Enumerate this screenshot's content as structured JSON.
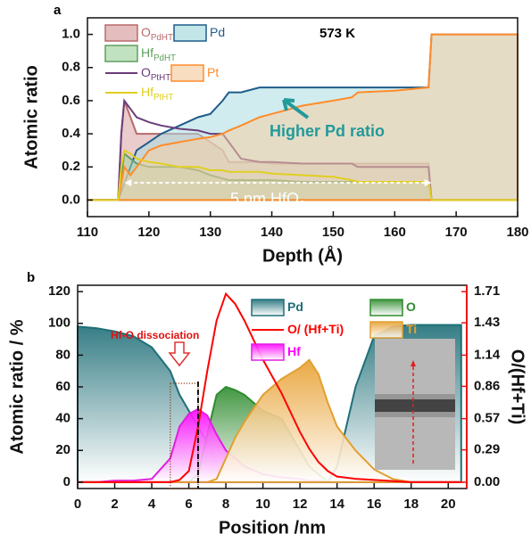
{
  "chart_data": [
    {
      "type": "area",
      "label": "a",
      "x_label": "Depth (Å)",
      "y_label": "Atomic ratio",
      "annotations": {
        "temperature": "573 K",
        "pd_ratio": "Higher Pd ratio",
        "thickness": "5 nm HfO",
        "thickness_sub": "2-x"
      },
      "x": [
        110,
        115,
        115.5,
        116,
        117,
        118,
        120,
        122,
        125,
        128,
        130,
        132,
        133,
        135,
        138,
        140,
        145,
        150,
        153,
        154,
        160,
        165.5,
        166,
        170,
        180
      ],
      "xlim": [
        110,
        180
      ],
      "xticks": [
        110,
        120,
        130,
        140,
        150,
        160,
        170,
        180
      ],
      "ylim": [
        -0.1,
        1.1
      ],
      "yticks": [
        {
          "value": 0,
          "label": "0.0"
        },
        {
          "value": 0.2,
          "label": "0.2"
        },
        {
          "value": 0.4,
          "label": "0.4"
        },
        {
          "value": 0.6,
          "label": "0.6"
        },
        {
          "value": 0.8,
          "label": "0.8"
        },
        {
          "value": 1,
          "label": "1.0"
        }
      ],
      "series": [
        {
          "name": "O",
          "name_sub": "PdHT",
          "color": "#b86a6a",
          "fill": "#d9a3a3",
          "values": [
            0,
            0,
            0.4,
            0.6,
            0.5,
            0.4,
            0.4,
            0.4,
            0.4,
            0.4,
            0.35,
            0.3,
            0.23,
            0.23,
            0.23,
            0.22,
            0.22,
            0.22,
            0.22,
            0.22,
            0.22,
            0.22,
            0,
            0,
            0
          ]
        },
        {
          "name": "Pd",
          "color": "#1f5c8a",
          "fill": "#a9dde0",
          "values": [
            0,
            0,
            0.05,
            0.1,
            0.2,
            0.3,
            0.35,
            0.4,
            0.45,
            0.5,
            0.52,
            0.6,
            0.65,
            0.65,
            0.68,
            0.68,
            0.68,
            0.68,
            0.68,
            0.68,
            0.68,
            0.68,
            1,
            1,
            1
          ]
        },
        {
          "name": "Hf",
          "name_sub": "PdHT",
          "color": "#5f9f5f",
          "fill": "#a6d6a6",
          "values": [
            0,
            0,
            0.15,
            0.28,
            0.25,
            0.22,
            0.2,
            0.2,
            0.2,
            0.18,
            0.15,
            0.13,
            0.12,
            0.12,
            0.12,
            0.12,
            0.11,
            0.11,
            0.11,
            0.11,
            0.11,
            0.11,
            0,
            0,
            0
          ]
        },
        {
          "name": "O",
          "name_sub": "PtHT",
          "color": "#6a3d7a",
          "values": [
            0,
            0,
            0.4,
            0.6,
            0.55,
            0.5,
            0.47,
            0.45,
            0.43,
            0.42,
            0.4,
            0.4,
            0.35,
            0.25,
            0.23,
            0.23,
            0.22,
            0.22,
            0.22,
            0.2,
            0.2,
            0.2,
            0,
            0,
            0
          ]
        },
        {
          "name": "Pt",
          "color": "#ff8c2a",
          "fill": "#f5cfa6",
          "values": [
            0,
            0,
            0.1,
            0.2,
            0.15,
            0.2,
            0.3,
            0.33,
            0.35,
            0.37,
            0.38,
            0.4,
            0.42,
            0.45,
            0.5,
            0.52,
            0.57,
            0.6,
            0.62,
            0.65,
            0.66,
            0.68,
            1,
            1,
            1
          ]
        },
        {
          "name": "Hf",
          "name_sub": "PtHT",
          "color": "#e0cf20",
          "values": [
            0,
            0,
            0.2,
            0.3,
            0.28,
            0.25,
            0.23,
            0.22,
            0.2,
            0.2,
            0.18,
            0.18,
            0.17,
            0.17,
            0.17,
            0.16,
            0.15,
            0.14,
            0.12,
            0.11,
            0.11,
            0.11,
            0,
            0,
            0
          ]
        }
      ]
    },
    {
      "type": "area",
      "label": "b",
      "gradient": true,
      "x_label": "Position /nm",
      "y_label": "Atomic ratio / %",
      "y2_label": "O/(Hf+Ti)",
      "annotations": {
        "dissociation": "Hf-O dissociation"
      },
      "x": [
        0,
        1,
        2,
        3,
        4,
        5,
        5.5,
        6,
        6.5,
        7,
        7.5,
        8,
        8.5,
        9,
        10,
        11,
        12,
        12.5,
        13,
        13.5,
        14,
        15,
        16,
        17,
        18,
        19,
        20,
        20.7
      ],
      "xlim": [
        0,
        21
      ],
      "xticks": [
        0,
        2,
        4,
        6,
        8,
        10,
        12,
        14,
        16,
        18,
        20
      ],
      "ylim": [
        -4,
        124
      ],
      "yticks": [
        0,
        20,
        40,
        60,
        80,
        100,
        120
      ],
      "y2lim": [
        -0.057,
        1.767
      ],
      "y2ticks": [
        {
          "value": 0,
          "label": "0.00"
        },
        {
          "value": 0.29,
          "label": "0.29"
        },
        {
          "value": 0.57,
          "label": "0.57"
        },
        {
          "value": 0.86,
          "label": "0.86"
        },
        {
          "value": 1.14,
          "label": "1.14"
        },
        {
          "value": 1.43,
          "label": "1.43"
        },
        {
          "value": 1.71,
          "label": "1.71"
        }
      ],
      "y2color": "#ee1111",
      "series": [
        {
          "name": "Pd",
          "color": "#1f6f78",
          "fill": "#1f6f78",
          "values": [
            98,
            97,
            95,
            92,
            85,
            70,
            55,
            45,
            35,
            25,
            10,
            3,
            1,
            0,
            0,
            0,
            0,
            0,
            0,
            0,
            10,
            60,
            92,
            98,
            99,
            99,
            99,
            99
          ]
        },
        {
          "name": "O",
          "color": "#2e8b2e",
          "fill": "#2e8b2e",
          "values": [
            0,
            0,
            0,
            0,
            0,
            0,
            0,
            0,
            5,
            30,
            55,
            60,
            58,
            55,
            45,
            40,
            20,
            10,
            5,
            0,
            0,
            0,
            0,
            0,
            0,
            0,
            0,
            0
          ]
        },
        {
          "name": "Hf",
          "color": "#e020e0",
          "fill": "#ff00ff",
          "values": [
            0,
            0,
            1,
            1,
            2,
            15,
            35,
            43,
            46,
            42,
            30,
            20,
            15,
            10,
            5,
            3,
            2,
            1,
            1,
            0,
            0,
            0,
            0,
            0,
            0,
            0,
            0,
            0
          ]
        },
        {
          "name": "Ti",
          "color": "#e0a030",
          "fill": "#e8a030",
          "values": [
            0,
            0,
            0,
            0,
            0,
            0,
            0,
            0,
            0,
            0,
            2,
            15,
            28,
            38,
            55,
            65,
            72,
            77,
            68,
            50,
            35,
            20,
            8,
            2,
            0,
            0,
            0,
            0
          ]
        },
        {
          "name": "O/ (Hf+Ti)",
          "color": "#ff0000",
          "axis": "y2",
          "values": [
            0,
            0,
            0,
            0,
            0,
            0,
            0.02,
            0.1,
            0.5,
            1.0,
            1.45,
            1.69,
            1.6,
            1.45,
            1.1,
            0.8,
            0.45,
            0.3,
            0.18,
            0.1,
            0.05,
            0.03,
            0.02,
            0.01,
            0,
            0,
            0,
            0
          ]
        }
      ]
    }
  ]
}
